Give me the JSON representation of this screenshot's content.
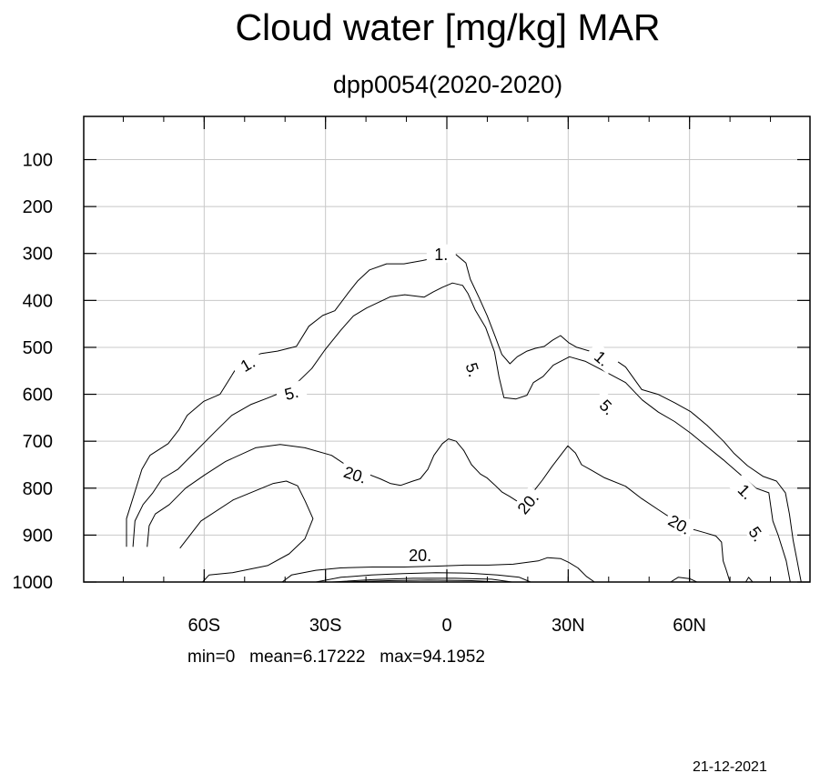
{
  "header": {
    "title": "Cloud water [mg/kg] MAR",
    "subtitle": "dpp0054(2020-2020)"
  },
  "footer": {
    "stats": "min=0   mean=6.17222   max=94.1952",
    "date": "21-12-2021"
  },
  "chart_data": {
    "type": "contour",
    "title": "Cloud water [mg/kg] MAR",
    "subtitle": "dpp0054(2020-2020)",
    "xlabel": "",
    "ylabel": "",
    "xlim": [
      -90,
      90
    ],
    "ylim": [
      1000,
      10
    ],
    "x_ticks": [
      {
        "value": -60,
        "label": "60S"
      },
      {
        "value": -30,
        "label": "30S"
      },
      {
        "value": 0,
        "label": "0"
      },
      {
        "value": 30,
        "label": "30N"
      },
      {
        "value": 60,
        "label": "60N"
      }
    ],
    "y_ticks": [
      {
        "value": 100,
        "label": "100"
      },
      {
        "value": 200,
        "label": "200"
      },
      {
        "value": 300,
        "label": "300"
      },
      {
        "value": 400,
        "label": "400"
      },
      {
        "value": 500,
        "label": "500"
      },
      {
        "value": 600,
        "label": "600"
      },
      {
        "value": 700,
        "label": "700"
      },
      {
        "value": 800,
        "label": "800"
      },
      {
        "value": 900,
        "label": "900"
      },
      {
        "value": 1000,
        "label": "1000"
      }
    ],
    "grid": true,
    "contour_levels": [
      1,
      5,
      20
    ],
    "contours": [
      {
        "level": 1,
        "points": [
          [
            -79.2,
            925
          ],
          [
            -79.2,
            865
          ],
          [
            -77.2,
            810
          ],
          [
            -75.4,
            760
          ],
          [
            -73.4,
            730
          ],
          [
            -68.9,
            705
          ],
          [
            -66.2,
            675
          ],
          [
            -64.2,
            645
          ],
          [
            -60.1,
            615
          ],
          [
            -56.1,
            600
          ],
          [
            -52.1,
            545
          ],
          [
            -49.8,
            525
          ],
          [
            -45.9,
            513
          ],
          [
            -41.9,
            508
          ],
          [
            -37.2,
            498
          ],
          [
            -34.1,
            455
          ],
          [
            -30.7,
            432
          ],
          [
            -27.7,
            422
          ],
          [
            -24.3,
            383
          ],
          [
            -22.0,
            358
          ],
          [
            -19.1,
            335
          ],
          [
            -14.9,
            322
          ],
          [
            -10.6,
            322
          ],
          [
            -6.0,
            315
          ],
          [
            -1.8,
            307
          ],
          [
            2.2,
            302
          ],
          [
            4.7,
            320
          ],
          [
            5.8,
            355
          ],
          [
            8.0,
            395
          ],
          [
            10.0,
            433
          ],
          [
            12.0,
            478
          ],
          [
            13.6,
            515
          ],
          [
            15.6,
            535
          ],
          [
            17.4,
            520
          ],
          [
            19.8,
            508
          ],
          [
            21.9,
            502
          ],
          [
            24.1,
            498
          ],
          [
            26.1,
            485
          ],
          [
            28.1,
            475
          ],
          [
            30.1,
            490
          ],
          [
            32.1,
            500
          ],
          [
            36.1,
            510
          ],
          [
            40.1,
            518
          ],
          [
            44.2,
            542
          ],
          [
            48.2,
            590
          ],
          [
            52.2,
            600
          ],
          [
            56.3,
            618
          ],
          [
            60.3,
            637
          ],
          [
            64.3,
            666
          ],
          [
            68.4,
            700
          ],
          [
            70.9,
            725
          ],
          [
            74.3,
            752
          ],
          [
            78.2,
            775
          ],
          [
            81.5,
            785
          ],
          [
            83.7,
            810
          ],
          [
            84.7,
            855
          ],
          [
            85.6,
            910
          ],
          [
            86.6,
            955
          ],
          [
            87.6,
            1000
          ]
        ]
      },
      {
        "level": 5,
        "points": [
          [
            -77.6,
            925
          ],
          [
            -77.1,
            870
          ],
          [
            -75.1,
            835
          ],
          [
            -72.7,
            810
          ],
          [
            -70.4,
            780
          ],
          [
            -66.5,
            760
          ],
          [
            -62.5,
            725
          ],
          [
            -57.3,
            680
          ],
          [
            -53.2,
            645
          ],
          [
            -48.5,
            622
          ],
          [
            -44.3,
            608
          ],
          [
            -40.6,
            595
          ],
          [
            -37.0,
            575
          ],
          [
            -33.4,
            545
          ],
          [
            -30.1,
            505
          ],
          [
            -26.2,
            463
          ],
          [
            -23.1,
            433
          ],
          [
            -19.8,
            416
          ],
          [
            -16.4,
            402
          ],
          [
            -13.9,
            392
          ],
          [
            -10.4,
            388
          ],
          [
            -5.6,
            393
          ],
          [
            -3.4,
            382
          ],
          [
            -1.1,
            372
          ],
          [
            1.4,
            363
          ],
          [
            3.9,
            368
          ],
          [
            5.2,
            385
          ],
          [
            7.0,
            420
          ],
          [
            9.6,
            458
          ],
          [
            11.8,
            510
          ],
          [
            12.9,
            563
          ],
          [
            14.1,
            607
          ],
          [
            17.1,
            610
          ],
          [
            19.8,
            602
          ],
          [
            21.4,
            575
          ],
          [
            23.8,
            562
          ],
          [
            26.3,
            538
          ],
          [
            30.3,
            520
          ],
          [
            34.3,
            530
          ],
          [
            38.3,
            548
          ],
          [
            44.2,
            575
          ],
          [
            48.3,
            612
          ],
          [
            52.3,
            638
          ],
          [
            56.3,
            658
          ],
          [
            60.3,
            683
          ],
          [
            64.4,
            712
          ],
          [
            68.4,
            740
          ],
          [
            72.4,
            770
          ],
          [
            76.4,
            800
          ],
          [
            79.6,
            810
          ],
          [
            80.6,
            870
          ],
          [
            81.9,
            900
          ],
          [
            83.9,
            955
          ],
          [
            84.9,
            1000
          ]
        ]
      },
      {
        "level": 20,
        "points": [
          [
            -74.1,
            925
          ],
          [
            -73.6,
            880
          ],
          [
            -72.1,
            855
          ],
          [
            -68.6,
            835
          ],
          [
            -64.6,
            800
          ],
          [
            -59.9,
            772
          ],
          [
            -54.7,
            743
          ],
          [
            -47.3,
            714
          ],
          [
            -41.2,
            707
          ],
          [
            -35.1,
            714
          ],
          [
            -28.5,
            730
          ],
          [
            -24.7,
            752
          ],
          [
            -19.5,
            770
          ],
          [
            -16.5,
            780
          ],
          [
            -14.0,
            790
          ],
          [
            -11.4,
            794
          ],
          [
            -8.4,
            785
          ],
          [
            -6.6,
            780
          ],
          [
            -4.7,
            760
          ],
          [
            -3.2,
            730
          ],
          [
            -1.1,
            705
          ],
          [
            0.4,
            695
          ],
          [
            2.3,
            700
          ],
          [
            4.2,
            720
          ],
          [
            6.1,
            750
          ],
          [
            8.3,
            770
          ],
          [
            9.9,
            778
          ],
          [
            11.7,
            792
          ],
          [
            13.6,
            808
          ],
          [
            15.6,
            818
          ],
          [
            17.4,
            828
          ],
          [
            19.5,
            822
          ],
          [
            21.6,
            805
          ],
          [
            23.7,
            782
          ],
          [
            25.9,
            755
          ],
          [
            28.1,
            730
          ],
          [
            29.9,
            710
          ],
          [
            31.8,
            725
          ],
          [
            33.3,
            750
          ],
          [
            35.8,
            762
          ],
          [
            39.0,
            778
          ],
          [
            44.2,
            796
          ],
          [
            48.1,
            822
          ],
          [
            52.3,
            846
          ],
          [
            56.2,
            868
          ],
          [
            60.1,
            886
          ],
          [
            63.8,
            895
          ],
          [
            66.5,
            902
          ],
          [
            67.9,
            915
          ],
          [
            68.3,
            955
          ],
          [
            69.1,
            975
          ],
          [
            70.0,
            1000
          ]
        ]
      },
      {
        "level": 20,
        "points": [
          [
            -66.0,
            928
          ],
          [
            -60.8,
            870
          ],
          [
            -52.8,
            825
          ],
          [
            -42.9,
            790
          ],
          [
            -39.7,
            785
          ],
          [
            -36.9,
            795
          ],
          [
            -35.0,
            828
          ],
          [
            -33.1,
            865
          ],
          [
            -35.1,
            908
          ],
          [
            -39.0,
            940
          ],
          [
            -44.3,
            965
          ],
          [
            -53.0,
            980
          ],
          [
            -58.8,
            985
          ],
          [
            -60.4,
            1000
          ]
        ]
      },
      {
        "level": 20,
        "points": [
          [
            -40.7,
            1000
          ],
          [
            -38.4,
            985
          ],
          [
            -32.4,
            975
          ],
          [
            -26.3,
            970
          ],
          [
            -18.4,
            968
          ],
          [
            -10.6,
            968
          ],
          [
            -2.3,
            966
          ],
          [
            4.4,
            964
          ],
          [
            10.3,
            964
          ],
          [
            16.4,
            962
          ],
          [
            22.6,
            955
          ],
          [
            24.9,
            948
          ],
          [
            28.1,
            950
          ],
          [
            30.1,
            958
          ],
          [
            32.4,
            970
          ],
          [
            34.5,
            988
          ],
          [
            36.5,
            1000
          ]
        ]
      },
      {
        "level": 20,
        "points": [
          [
            -32.4,
            1000
          ],
          [
            -26.2,
            990
          ],
          [
            -18.7,
            985
          ],
          [
            -10.9,
            982
          ],
          [
            -2.7,
            980
          ],
          [
            5.4,
            981
          ],
          [
            12.5,
            985
          ],
          [
            17.9,
            990
          ],
          [
            20.7,
            1000
          ]
        ]
      },
      {
        "level": 20,
        "points": [
          [
            -28.4,
            1000
          ],
          [
            -18.4,
            995
          ],
          [
            -8.3,
            992
          ],
          [
            2.0,
            992
          ],
          [
            11.0,
            994
          ],
          [
            16.1,
            1000
          ]
        ]
      },
      {
        "level": 20,
        "points": [
          [
            -25.5,
            1000
          ],
          [
            -14.4,
            997
          ],
          [
            -4.5,
            996
          ],
          [
            6.2,
            997
          ],
          [
            13.1,
            1000
          ]
        ]
      },
      {
        "level": 20,
        "points": [
          [
            55.3,
            1000
          ],
          [
            57.2,
            990
          ],
          [
            60.1,
            993
          ],
          [
            61.8,
            1000
          ]
        ]
      },
      {
        "level": 20,
        "points": [
          [
            73.9,
            1000
          ],
          [
            74.6,
            990
          ],
          [
            75.6,
            1000
          ]
        ]
      }
    ],
    "contour_labels": [
      {
        "text": "1.",
        "x": -1.4,
        "y": 302,
        "angle": 0
      },
      {
        "text": "1.",
        "x": -49.2,
        "y": 536,
        "angle": -30
      },
      {
        "text": "5.",
        "x": -38.4,
        "y": 598,
        "angle": -15
      },
      {
        "text": "5.",
        "x": 6.4,
        "y": 548,
        "angle": 72
      },
      {
        "text": "20.",
        "x": -22.7,
        "y": 772,
        "angle": 18
      },
      {
        "text": "20.",
        "x": 20.1,
        "y": 832,
        "angle": -50
      },
      {
        "text": "1.",
        "x": 38.3,
        "y": 524,
        "angle": 40
      },
      {
        "text": "5.",
        "x": 39.6,
        "y": 628,
        "angle": 45
      },
      {
        "text": "20.",
        "x": -6.6,
        "y": 944,
        "angle": 0
      },
      {
        "text": "20.",
        "x": 57.5,
        "y": 878,
        "angle": 30
      },
      {
        "text": "1.",
        "x": 73.8,
        "y": 808,
        "angle": 45
      },
      {
        "text": "5.",
        "x": 76.5,
        "y": 898,
        "angle": 55
      }
    ]
  }
}
